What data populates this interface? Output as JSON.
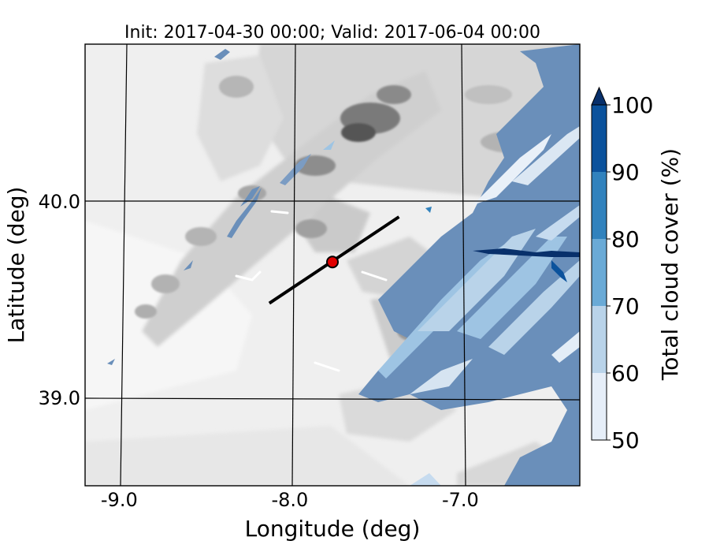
{
  "title": "Init: 2017-04-30 00:00; Valid: 2017-06-04 00:00",
  "map": {
    "xlabel": "Longitude (deg)",
    "ylabel": "Latitude (deg)",
    "xlim": [
      -9.2,
      -6.3
    ],
    "ylim": [
      38.55,
      40.8
    ],
    "x_ticks": [
      {
        "value": -9.0,
        "label": "-9.0"
      },
      {
        "value": -8.0,
        "label": "-8.0"
      },
      {
        "value": -7.0,
        "label": "-7.0"
      }
    ],
    "y_ticks": [
      {
        "value": 40.0,
        "label": "40.0"
      },
      {
        "value": 39.0,
        "label": "39.0"
      }
    ],
    "transect": {
      "start": {
        "lon": -8.12,
        "lat": 39.48
      },
      "end": {
        "lon": -7.36,
        "lat": 39.92
      },
      "color": "#000000"
    },
    "point_marker": {
      "lon": -7.75,
      "lat": 39.69,
      "color": "#e00000"
    }
  },
  "colorbar": {
    "label": "Total cloud cover (%)",
    "levels": [
      50,
      60,
      70,
      80,
      90,
      100
    ],
    "tick_labels": [
      "50",
      "60",
      "70",
      "80",
      "90",
      "100"
    ],
    "colors": [
      "#e6eef8",
      "#b9d3e9",
      "#6aaad6",
      "#3182bd",
      "#0b529c"
    ],
    "extend_color": "#08306b",
    "extend": "max"
  },
  "colors": {
    "terrain_light": "#eeeeee",
    "terrain_mid": "#d0d0d0",
    "terrain_dark": "#8a8a8a",
    "cloud_overlay": "#5a82b4"
  }
}
